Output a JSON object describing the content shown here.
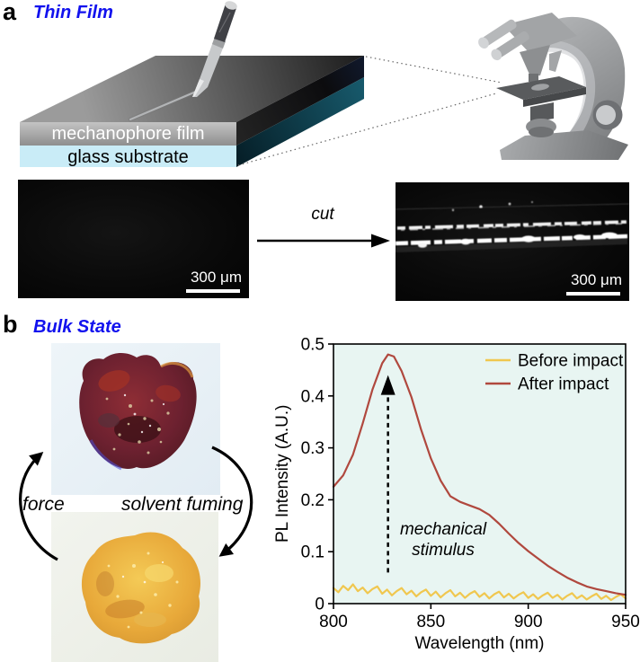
{
  "panel_a": {
    "label": "a",
    "title": "Thin Film",
    "film_label": "mechanophore film",
    "substrate_label": "glass substrate",
    "cut_label": "cut",
    "scalebar_left": "300 μm",
    "scalebar_right": "300 μm"
  },
  "panel_b": {
    "label": "b",
    "title": "Bulk State",
    "cycle_left_label": "force",
    "cycle_right_label": "solvent fuming"
  },
  "colors": {
    "panel_title": "#1212ee",
    "scalebar": "#ffffff",
    "before_series": "#f0c74f",
    "after_series": "#b0483e",
    "plot_background": "#e8f5f2"
  },
  "chart_data": {
    "type": "line",
    "title": "",
    "xlabel": "Wavelength (nm)",
    "ylabel": "PL Intensity (A.U.)",
    "xlim": [
      800,
      950
    ],
    "ylim": [
      0,
      0.5
    ],
    "xticks": [
      800,
      850,
      900,
      950
    ],
    "yticks": [
      0,
      0.1,
      0.2,
      0.3,
      0.4,
      0.5
    ],
    "grid": false,
    "plot_bg": "#e8f5f2",
    "legend_position": "top-right",
    "annotation": {
      "line1": "mechanical",
      "line2": "stimulus",
      "arrow_x": 828,
      "arrow_y_start": 0.06,
      "arrow_y_tip": 0.44,
      "style": "dashed-vertical-arrow"
    },
    "series": [
      {
        "name": "Before impact",
        "color": "#f0c74f",
        "x_start": 800,
        "x_step": 2.5,
        "y": [
          0.03,
          0.022,
          0.034,
          0.026,
          0.037,
          0.024,
          0.031,
          0.02,
          0.028,
          0.033,
          0.019,
          0.027,
          0.016,
          0.024,
          0.03,
          0.018,
          0.025,
          0.014,
          0.022,
          0.027,
          0.015,
          0.023,
          0.012,
          0.02,
          0.026,
          0.014,
          0.021,
          0.011,
          0.019,
          0.024,
          0.013,
          0.02,
          0.01,
          0.018,
          0.023,
          0.012,
          0.019,
          0.01,
          0.017,
          0.022,
          0.011,
          0.018,
          0.009,
          0.016,
          0.021,
          0.011,
          0.017,
          0.008,
          0.015,
          0.02,
          0.01,
          0.016,
          0.008,
          0.014,
          0.019,
          0.009,
          0.015,
          0.007,
          0.013,
          0.018,
          0.01
        ]
      },
      {
        "name": "After impact",
        "color": "#b0483e",
        "x": [
          800,
          805,
          810,
          815,
          820,
          825,
          828,
          831,
          835,
          840,
          845,
          850,
          855,
          860,
          865,
          870,
          875,
          880,
          885,
          890,
          895,
          900,
          905,
          910,
          915,
          920,
          925,
          930,
          935,
          940,
          945,
          950
        ],
        "y": [
          0.225,
          0.247,
          0.287,
          0.347,
          0.412,
          0.463,
          0.48,
          0.476,
          0.448,
          0.398,
          0.335,
          0.28,
          0.237,
          0.207,
          0.196,
          0.189,
          0.182,
          0.171,
          0.154,
          0.135,
          0.117,
          0.101,
          0.087,
          0.073,
          0.061,
          0.05,
          0.041,
          0.033,
          0.028,
          0.024,
          0.02,
          0.017
        ]
      }
    ]
  }
}
